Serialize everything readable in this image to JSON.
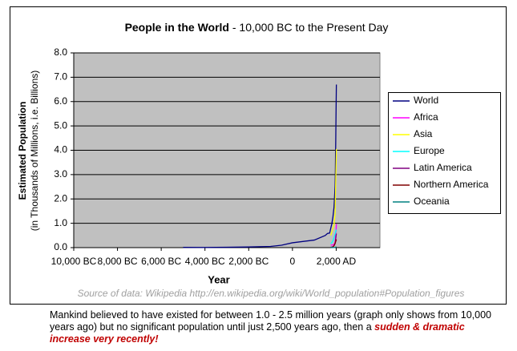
{
  "chart_data": {
    "type": "line",
    "title": "People in the World",
    "subtitle": " - 10,000 BC to the Present Day",
    "y_label": "Estimated Population",
    "y_sublabel": "(in Thousands of Millions, i.e. Billions)",
    "x_label": "Year",
    "source": "Source of data: Wikipedia  http://en.wikipedia.org/wiki/World_population#Population_figures",
    "xlim": [
      -10000,
      4000
    ],
    "ylim": [
      0,
      8
    ],
    "xticks": [
      {
        "value": -10000,
        "label": "10,000 BC"
      },
      {
        "value": -8000,
        "label": "8,000 BC"
      },
      {
        "value": -6000,
        "label": "6,000 BC"
      },
      {
        "value": -4000,
        "label": "4,000 BC"
      },
      {
        "value": -2000,
        "label": "2,000 BC"
      },
      0,
      {
        "value": 2000,
        "label": "2,000 AD"
      }
    ],
    "yticks": [
      {
        "value": 0,
        "label": "0.0"
      },
      {
        "value": 1,
        "label": "1.0"
      },
      {
        "value": 2,
        "label": "2.0"
      },
      {
        "value": 3,
        "label": "3.0"
      },
      {
        "value": 4,
        "label": "4.0"
      },
      {
        "value": 5,
        "label": "5.0"
      },
      {
        "value": 6,
        "label": "6.0"
      },
      {
        "value": 7,
        "label": "7.0"
      },
      {
        "value": 8,
        "label": "8.0"
      }
    ],
    "grid": true,
    "plot_color": "#c0c0c0",
    "legend": "right",
    "series": [
      {
        "name": "World",
        "color": "#000080",
        "x": [
          -5000,
          -4000,
          -3000,
          -2000,
          -1000,
          -500,
          1,
          1000,
          1500,
          1600,
          1700,
          1750,
          1800,
          1850,
          1900,
          1950,
          1960,
          1970,
          1980,
          1990,
          1999,
          2008
        ],
        "values": [
          0.01,
          0.007,
          0.014,
          0.027,
          0.05,
          0.1,
          0.2,
          0.31,
          0.5,
          0.58,
          0.6,
          0.79,
          0.98,
          1.26,
          1.65,
          2.52,
          3.0,
          3.7,
          4.4,
          5.3,
          6.0,
          6.7
        ]
      },
      {
        "name": "Africa",
        "color": "#ff00ff",
        "x": [
          1750,
          1800,
          1850,
          1900,
          1950,
          1999,
          2008
        ],
        "values": [
          0.106,
          0.107,
          0.111,
          0.133,
          0.221,
          0.767,
          0.973
        ]
      },
      {
        "name": "Asia",
        "color": "#ffff00",
        "x": [
          1750,
          1800,
          1850,
          1900,
          1950,
          1999,
          2008
        ],
        "values": [
          0.502,
          0.635,
          0.809,
          0.947,
          1.402,
          3.634,
          4.054
        ]
      },
      {
        "name": "Europe",
        "color": "#00ffff",
        "x": [
          1750,
          1800,
          1850,
          1900,
          1950,
          1999,
          2008
        ],
        "values": [
          0.163,
          0.203,
          0.276,
          0.408,
          0.547,
          0.729,
          0.732
        ]
      },
      {
        "name": "Latin America",
        "color": "#800080",
        "x": [
          1750,
          1800,
          1850,
          1900,
          1950,
          1999,
          2008
        ],
        "values": [
          0.016,
          0.024,
          0.038,
          0.074,
          0.167,
          0.511,
          0.577
        ]
      },
      {
        "name": "Northern America",
        "color": "#800000",
        "x": [
          1750,
          1800,
          1850,
          1900,
          1950,
          1999,
          2008
        ],
        "values": [
          0.002,
          0.007,
          0.026,
          0.082,
          0.172,
          0.307,
          0.337
        ]
      },
      {
        "name": "Oceania",
        "color": "#008080",
        "x": [
          1750,
          1800,
          1850,
          1900,
          1950,
          1999,
          2008
        ],
        "values": [
          0.002,
          0.002,
          0.002,
          0.006,
          0.013,
          0.03,
          0.034
        ]
      }
    ]
  },
  "caption": {
    "text": "Mankind believed to have existed for between 1.0 - 2.5 million years (graph only shows from 10,000 years ago) but no significant population until just 2,500 years ago, then a ",
    "emphasis": "sudden & dramatic increase very recently!"
  }
}
